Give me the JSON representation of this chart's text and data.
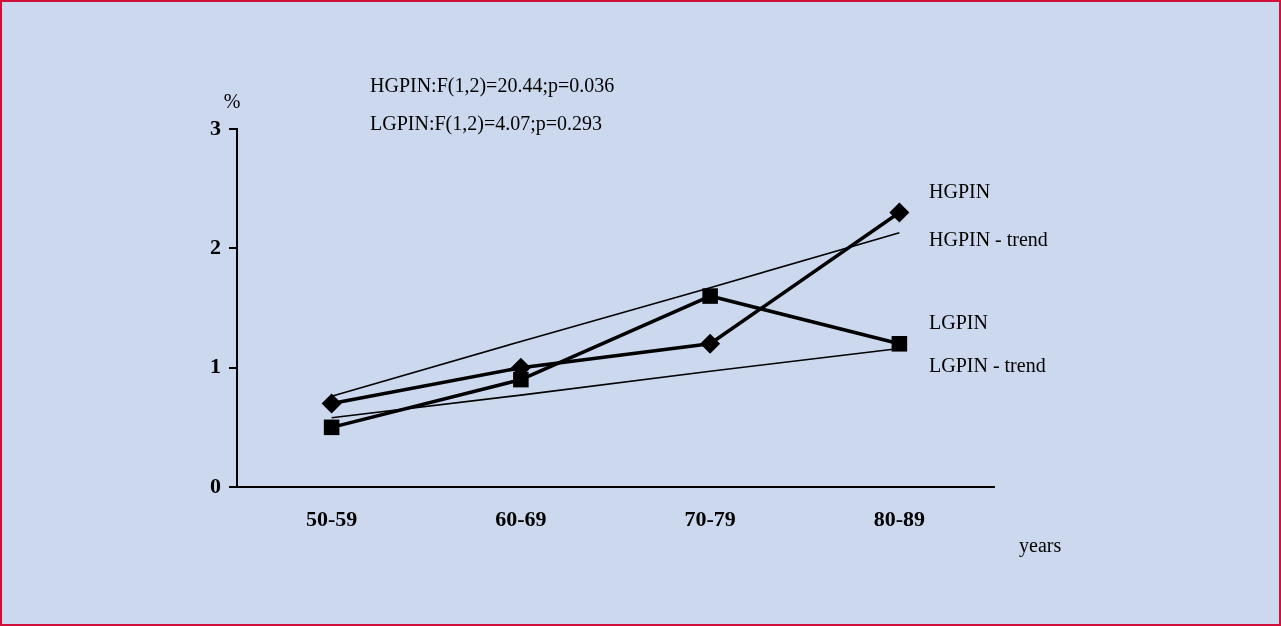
{
  "chart_data": {
    "type": "line",
    "categories": [
      "50-59",
      "60-69",
      "70-79",
      "80-89"
    ],
    "xlabel": "years",
    "ylabel": "%",
    "annotations": [
      "HGPIN:F(1,2)=20.44;p=0.036",
      "LGPIN:F(1,2)=4.07;p=0.293"
    ],
    "ylim": [
      0,
      3
    ],
    "yticks": [
      0,
      1,
      2,
      3
    ],
    "grid": false,
    "legend": false,
    "series": [
      {
        "name": "HGPIN",
        "color": "#000000",
        "marker": "diamond",
        "values": [
          0.7,
          1.0,
          1.2,
          2.3
        ]
      },
      {
        "name": "LGPIN",
        "color": "#000000",
        "marker": "square",
        "values": [
          0.5,
          0.9,
          1.6,
          1.2
        ]
      },
      {
        "name": "HGPIN - trend",
        "color": "#000000",
        "marker": "none",
        "values": [
          0.76,
          1.22,
          1.67,
          2.13
        ]
      },
      {
        "name": "LGPIN - trend",
        "color": "#000000",
        "marker": "none",
        "values": [
          0.58,
          0.77,
          0.97,
          1.16
        ]
      }
    ]
  }
}
